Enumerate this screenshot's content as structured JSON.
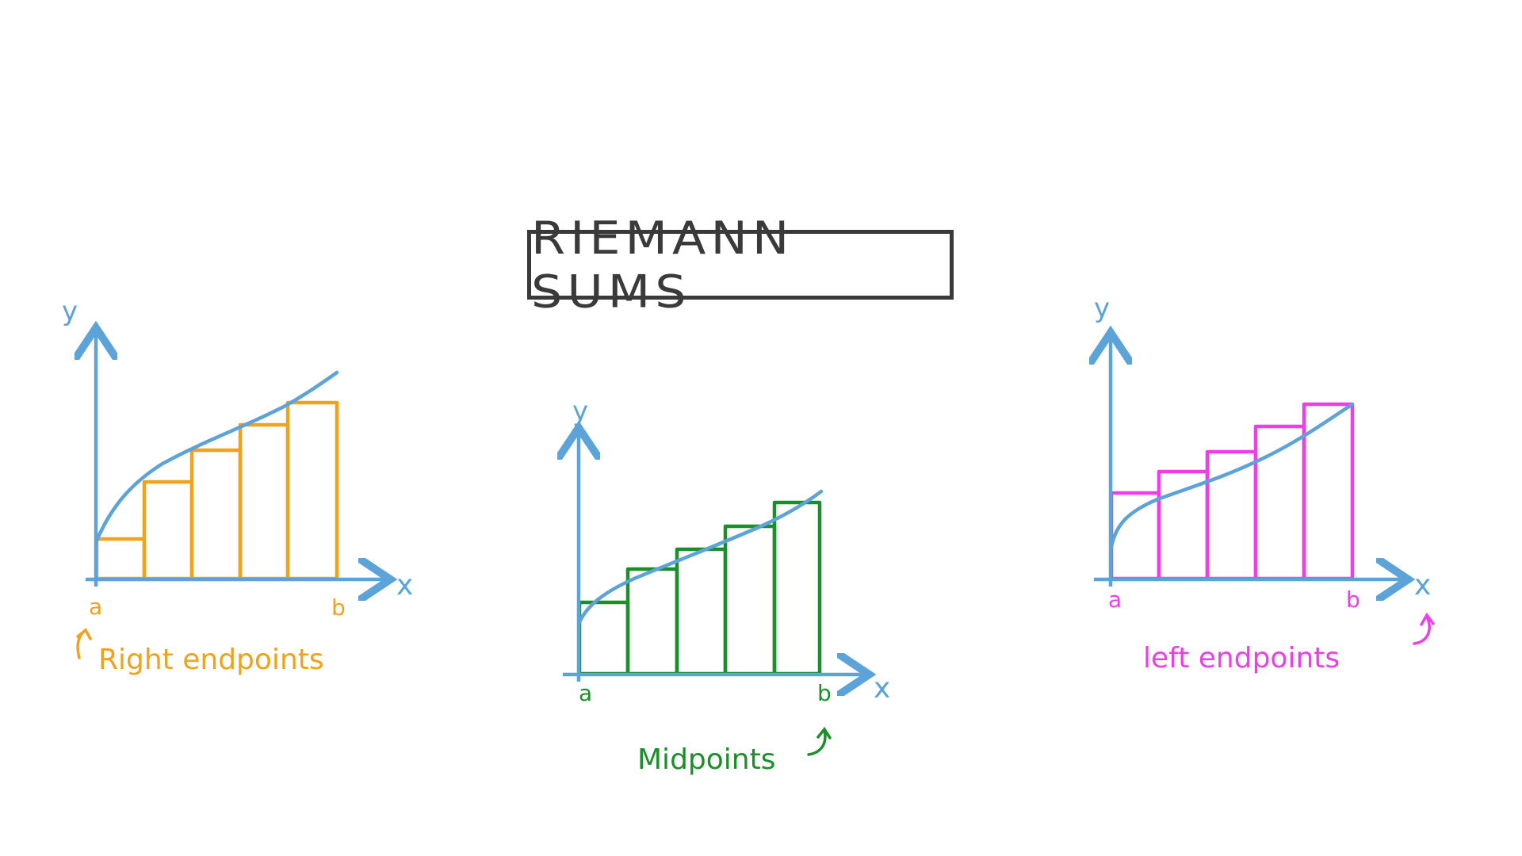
{
  "title": "RIEMANN SUMS",
  "colors": {
    "axis": "#5ba3d9",
    "curve": "#5ba3d9",
    "right": "#f0a21a",
    "mid": "#1a8f2a",
    "left": "#ee3ee8",
    "title_ink": "#3a3a3a"
  },
  "panels": [
    {
      "id": "right",
      "method": "Right endpoints",
      "y_label": "y",
      "x_label": "x",
      "a_label": "a",
      "b_label": "b",
      "rectangles": 5
    },
    {
      "id": "mid",
      "method": "Midpoints",
      "y_label": "y",
      "x_label": "x",
      "a_label": "a",
      "b_label": "b",
      "rectangles": 5
    },
    {
      "id": "left",
      "method": "left endpoints",
      "y_label": "y",
      "x_label": "x",
      "a_label": "a",
      "b_label": "b",
      "rectangles": 5
    }
  ]
}
